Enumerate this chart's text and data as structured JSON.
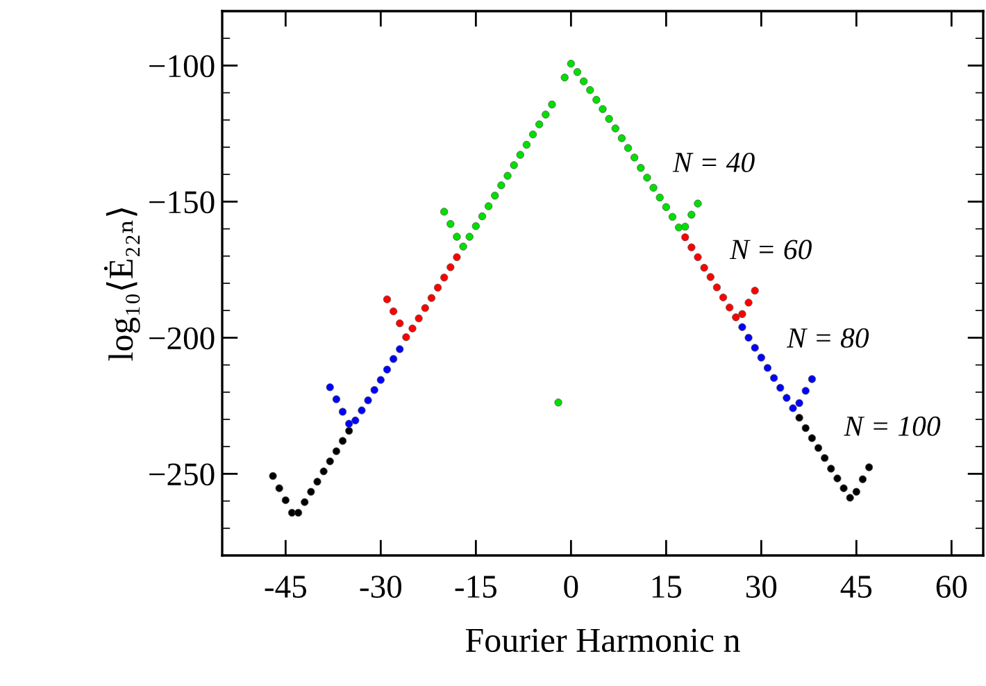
{
  "chart_data": {
    "type": "scatter",
    "xlabel": "Fourier Harmonic n",
    "ylabel": "log₁₀⟨Ė₂₂ₙ⟩",
    "xlim": [
      -55,
      65
    ],
    "ylim": [
      -280,
      -80
    ],
    "xticks": [
      -45,
      -30,
      -15,
      0,
      15,
      30,
      45,
      60
    ],
    "yticks": [
      {
        "value": -100,
        "label": "−100"
      },
      {
        "value": -150,
        "label": "−150"
      },
      {
        "value": -200,
        "label": "−200"
      },
      {
        "value": -250,
        "label": "−250"
      }
    ],
    "grid": false,
    "marker": "circle",
    "series": [
      {
        "name": "N = 100",
        "color": "#000000",
        "x": [
          -47,
          -46,
          -45,
          -44,
          -43,
          -42,
          -41,
          -40,
          -39,
          -38,
          -37,
          -36,
          -35,
          36,
          37,
          38,
          39,
          40,
          41,
          42,
          43,
          44,
          45,
          46,
          47
        ],
        "values": [
          -250.8,
          -255.3,
          -259.7,
          -264.3,
          -264.3,
          -260.4,
          -256.6,
          -252.9,
          -249.1,
          -245.4,
          -241.7,
          -237.9,
          -234.2,
          -229.4,
          -233.2,
          -236.9,
          -240.5,
          -244.2,
          -248.1,
          -251.7,
          -255.3,
          -258.8,
          -256.6,
          -252.0,
          -247.6
        ]
      },
      {
        "name": "N = 80",
        "color": "#0000ff",
        "x": [
          -38,
          -37,
          -36,
          -35,
          -34,
          -33,
          -32,
          -31,
          -30,
          -29,
          -28,
          -27,
          27,
          28,
          29,
          30,
          31,
          32,
          33,
          34,
          35,
          36,
          37,
          38
        ],
        "values": [
          -218.2,
          -222.6,
          -227.2,
          -231.6,
          -230.4,
          -226.7,
          -223.0,
          -219.2,
          -215.5,
          -211.7,
          -207.8,
          -204.2,
          -196.1,
          -200.0,
          -203.7,
          -207.3,
          -211.1,
          -214.8,
          -218.4,
          -222.1,
          -225.9,
          -224.0,
          -219.5,
          -215.2
        ]
      },
      {
        "name": "N = 60",
        "color": "#ff0000",
        "x": [
          -29,
          -28,
          -27,
          -26,
          -25,
          -24,
          -23,
          -22,
          -21,
          -20,
          -19,
          -18,
          18,
          19,
          20,
          21,
          22,
          23,
          24,
          25,
          26,
          27,
          28,
          29
        ],
        "values": [
          -185.9,
          -190.3,
          -194.7,
          -199.8,
          -196.6,
          -192.9,
          -189.1,
          -185.4,
          -181.6,
          -177.9,
          -174.1,
          -170.4,
          -163.1,
          -166.8,
          -170.4,
          -174.3,
          -177.7,
          -181.5,
          -185.2,
          -188.9,
          -192.5,
          -191.3,
          -187.1,
          -182.7
        ]
      },
      {
        "name": "N = 40",
        "color": "#00e000",
        "x": [
          -20,
          -19,
          -18,
          -17,
          -16,
          -15,
          -14,
          -13,
          -12,
          -11,
          -10,
          -9,
          -8,
          -7,
          -6,
          -5,
          -4,
          -3,
          -2,
          -1,
          0,
          1,
          2,
          3,
          4,
          5,
          6,
          7,
          8,
          9,
          10,
          11,
          12,
          13,
          14,
          15,
          16,
          17,
          18,
          19,
          20
        ],
        "values": [
          -153.7,
          -158.2,
          -162.9,
          -166.5,
          -162.9,
          -159.0,
          -155.4,
          -151.7,
          -147.8,
          -144.0,
          -140.5,
          -136.6,
          -132.8,
          -129.1,
          -125.3,
          -121.6,
          -118.0,
          -114.3,
          -223.8,
          -104.4,
          -99.3,
          -102.4,
          -105.8,
          -109.0,
          -112.6,
          -116.0,
          -119.6,
          -123.1,
          -126.7,
          -130.3,
          -133.8,
          -137.6,
          -141.2,
          -144.9,
          -148.5,
          -152.0,
          -155.6,
          -159.5,
          -159.2,
          -154.8,
          -150.7
        ]
      }
    ]
  }
}
